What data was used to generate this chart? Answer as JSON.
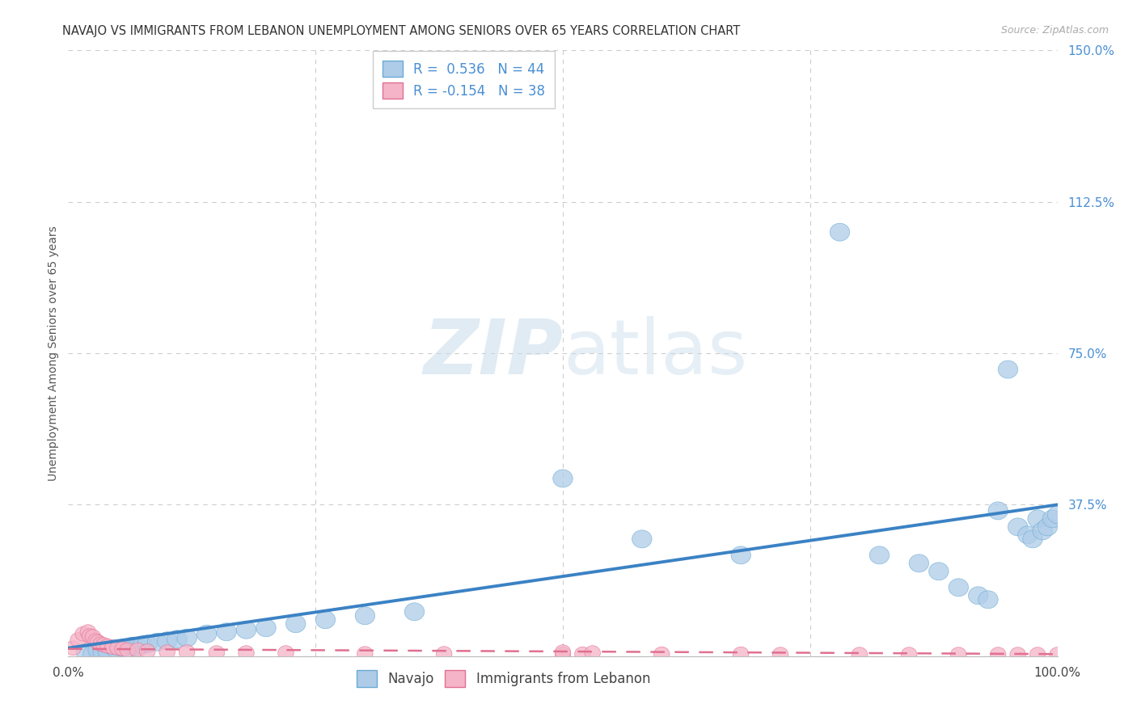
{
  "title": "NAVAJO VS IMMIGRANTS FROM LEBANON UNEMPLOYMENT AMONG SENIORS OVER 65 YEARS CORRELATION CHART",
  "source": "Source: ZipAtlas.com",
  "ylabel": "Unemployment Among Seniors over 65 years",
  "xlim": [
    0.0,
    1.0
  ],
  "ylim": [
    0.0,
    1.5
  ],
  "xtick_positions": [
    0.0,
    1.0
  ],
  "xtick_labels": [
    "0.0%",
    "100.0%"
  ],
  "ytick_positions": [
    0.0,
    0.375,
    0.75,
    1.125,
    1.5
  ],
  "ytick_labels": [
    "",
    "37.5%",
    "75.0%",
    "112.5%",
    "150.0%"
  ],
  "navajo_R": "0.536",
  "navajo_N": "44",
  "lebanon_R": "-0.154",
  "lebanon_N": "38",
  "navajo_color": "#aecce8",
  "navajo_edge": "#6aaad4",
  "lebanon_color": "#f5b4c8",
  "lebanon_edge": "#e07090",
  "navajo_line_color": "#3b82c4",
  "lebanon_line_color": "#e07090",
  "watermark_zip": "ZIP",
  "watermark_atlas": "atlas",
  "watermark_color_zip": "#c8dcea",
  "watermark_color_atlas": "#c8dcea",
  "background_color": "#ffffff",
  "grid_color": "#cccccc",
  "title_color": "#333333",
  "source_color": "#aaaaaa",
  "ytick_color": "#4a8fd4",
  "legend_text_color": "#4a8fd4",
  "navajo_x": [
    0.018,
    0.025,
    0.03,
    0.035,
    0.04,
    0.048,
    0.055,
    0.06,
    0.065,
    0.07,
    0.075,
    0.08,
    0.09,
    0.1,
    0.11,
    0.12,
    0.14,
    0.16,
    0.18,
    0.2,
    0.23,
    0.26,
    0.3,
    0.35,
    0.5,
    0.58,
    0.68,
    0.78,
    0.82,
    0.86,
    0.88,
    0.9,
    0.92,
    0.93,
    0.94,
    0.95,
    0.96,
    0.97,
    0.975,
    0.98,
    0.985,
    0.99,
    0.995,
    1.0
  ],
  "navajo_y": [
    0.01,
    0.005,
    0.015,
    0.008,
    0.012,
    0.018,
    0.02,
    0.015,
    0.025,
    0.022,
    0.028,
    0.03,
    0.035,
    0.038,
    0.042,
    0.045,
    0.055,
    0.06,
    0.065,
    0.07,
    0.08,
    0.09,
    0.1,
    0.11,
    0.44,
    0.29,
    0.25,
    1.05,
    0.25,
    0.23,
    0.21,
    0.17,
    0.15,
    0.14,
    0.36,
    0.71,
    0.32,
    0.3,
    0.29,
    0.34,
    0.31,
    0.32,
    0.34,
    0.35
  ],
  "lebanon_x": [
    0.005,
    0.01,
    0.015,
    0.02,
    0.022,
    0.025,
    0.028,
    0.03,
    0.033,
    0.036,
    0.04,
    0.045,
    0.05,
    0.055,
    0.06,
    0.07,
    0.08,
    0.1,
    0.12,
    0.15,
    0.18,
    0.22,
    0.3,
    0.38,
    0.5,
    0.52,
    0.6,
    0.68,
    0.72,
    0.8,
    0.85,
    0.9,
    0.94,
    0.96,
    0.98,
    1.0,
    0.5,
    0.53
  ],
  "lebanon_y": [
    0.02,
    0.04,
    0.055,
    0.06,
    0.05,
    0.048,
    0.038,
    0.035,
    0.03,
    0.028,
    0.025,
    0.022,
    0.02,
    0.018,
    0.015,
    0.015,
    0.012,
    0.01,
    0.01,
    0.008,
    0.008,
    0.008,
    0.006,
    0.006,
    0.005,
    0.005,
    0.005,
    0.005,
    0.004,
    0.004,
    0.004,
    0.004,
    0.004,
    0.004,
    0.004,
    0.004,
    0.01,
    0.008
  ]
}
